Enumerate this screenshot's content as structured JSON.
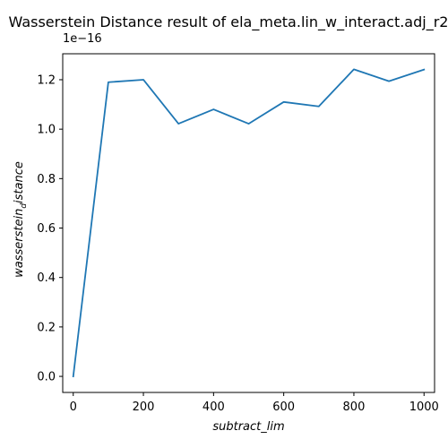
{
  "chart_data": {
    "type": "line",
    "title": "Wasserstein Distance result of ela_meta.lin_w_interact.adj_r2",
    "xlabel": "subtract_lim",
    "ylabel_main": "wasserstein",
    "ylabel_sub": "d",
    "ylabel_tail": "istance",
    "y_offset_label": "1e−16",
    "xlim": [
      -30,
      1030
    ],
    "ylim": [
      -0.065,
      1.305
    ],
    "x_ticks": [
      0,
      200,
      400,
      600,
      800,
      1000
    ],
    "x_tick_labels": [
      "0",
      "200",
      "400",
      "600",
      "800",
      "1000"
    ],
    "y_ticks": [
      0.0,
      0.2,
      0.4,
      0.6,
      0.8,
      1.0,
      1.2
    ],
    "y_tick_labels": [
      "0.0",
      "0.2",
      "0.4",
      "0.6",
      "0.8",
      "1.0",
      "1.2"
    ],
    "grid": false,
    "line_color": "#1f77b4",
    "x": [
      0,
      100,
      200,
      300,
      400,
      500,
      600,
      700,
      800,
      900,
      1000
    ],
    "values": [
      0.0,
      1.19,
      1.2,
      1.022,
      1.08,
      1.022,
      1.11,
      1.092,
      1.242,
      1.194,
      1.241
    ]
  }
}
